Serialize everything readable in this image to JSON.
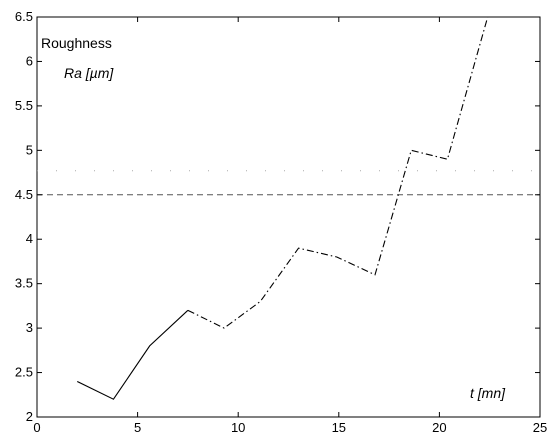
{
  "chart_data": {
    "type": "line",
    "xlim": [
      0,
      25
    ],
    "ylim": [
      2,
      6.5
    ],
    "x_ticks": [
      "0",
      "5",
      "10",
      "15",
      "20",
      "25"
    ],
    "y_ticks": [
      "2",
      "2.5",
      "3",
      "3.5",
      "4",
      "4.5",
      "5",
      "5.5",
      "6",
      "6.5"
    ],
    "annotations": {
      "ylabel_top": "Roughness",
      "ylabel_sub": "Ra [µm]",
      "xlabel": "t [mn]"
    },
    "grid": false,
    "series": [
      {
        "style": "solid",
        "x": [
          2.0,
          3.8,
          5.6,
          7.5
        ],
        "y": [
          2.4,
          2.2,
          2.8,
          3.2
        ]
      },
      {
        "style": "dash-dot",
        "x": [
          7.5,
          9.3,
          11.1,
          13.0,
          14.9,
          16.8,
          18.6,
          20.4,
          22.4
        ],
        "y": [
          3.2,
          3.0,
          3.3,
          3.9,
          3.8,
          3.6,
          5.0,
          4.9,
          6.5
        ]
      }
    ],
    "reference_lines": [
      {
        "style": "dashed",
        "y": 4.5
      },
      {
        "style": "dotted",
        "y": 4.77
      }
    ]
  }
}
